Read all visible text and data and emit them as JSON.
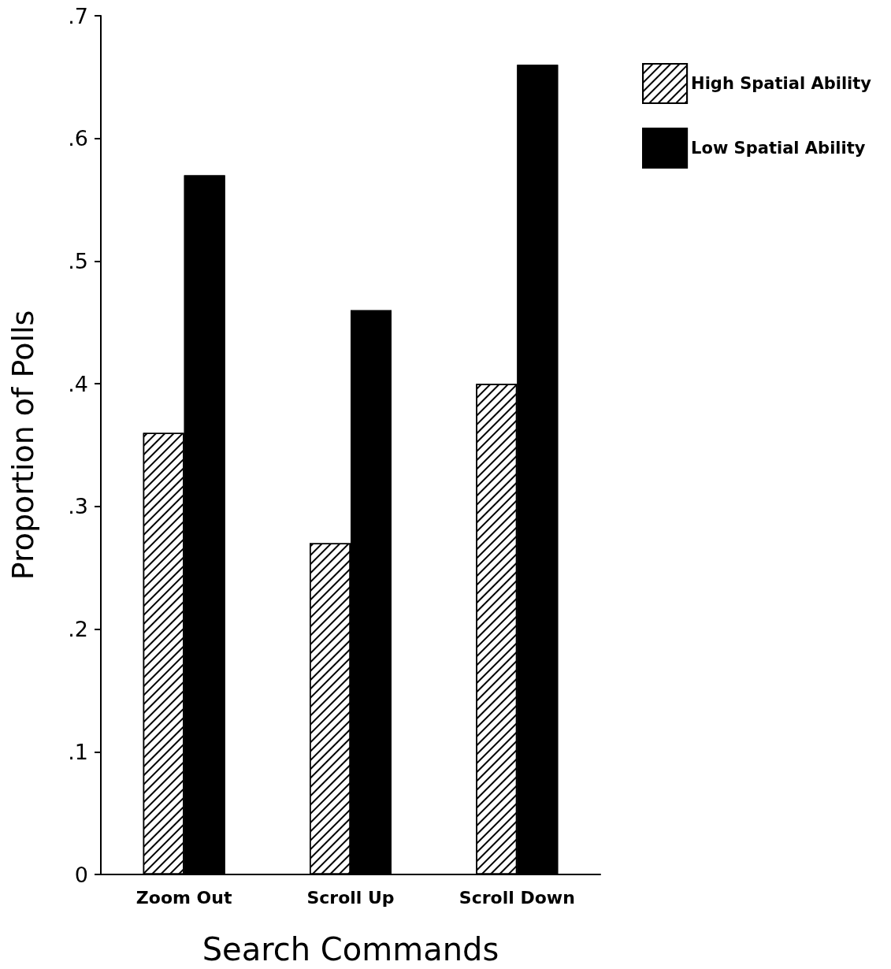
{
  "chart_data": {
    "type": "bar",
    "xlabel": "Search Commands",
    "ylabel": "Proportion of Polls",
    "categories": [
      "Zoom Out",
      "Scroll Up",
      "Scroll Down"
    ],
    "series": [
      {
        "name": "High Spatial Ability",
        "color": "#ffffff",
        "values": [
          0.36,
          0.27,
          0.4
        ]
      },
      {
        "name": "Low Spatial Ability",
        "color": "#000000",
        "values": [
          0.57,
          0.46,
          0.66
        ]
      }
    ],
    "ylim": [
      0,
      0.7
    ],
    "yticks": [
      0,
      {
        "value": 0.1,
        "label": ".1"
      },
      {
        "value": 0.2,
        "label": ".2"
      },
      {
        "value": 0.3,
        "label": ".3"
      },
      {
        "value": 0.4,
        "label": ".4"
      },
      {
        "value": 0.5,
        "label": ".5"
      },
      {
        "value": 0.6,
        "label": ".6"
      },
      {
        "value": 0.7,
        "label": ".7"
      }
    ],
    "grid": false,
    "legend": "top right"
  }
}
